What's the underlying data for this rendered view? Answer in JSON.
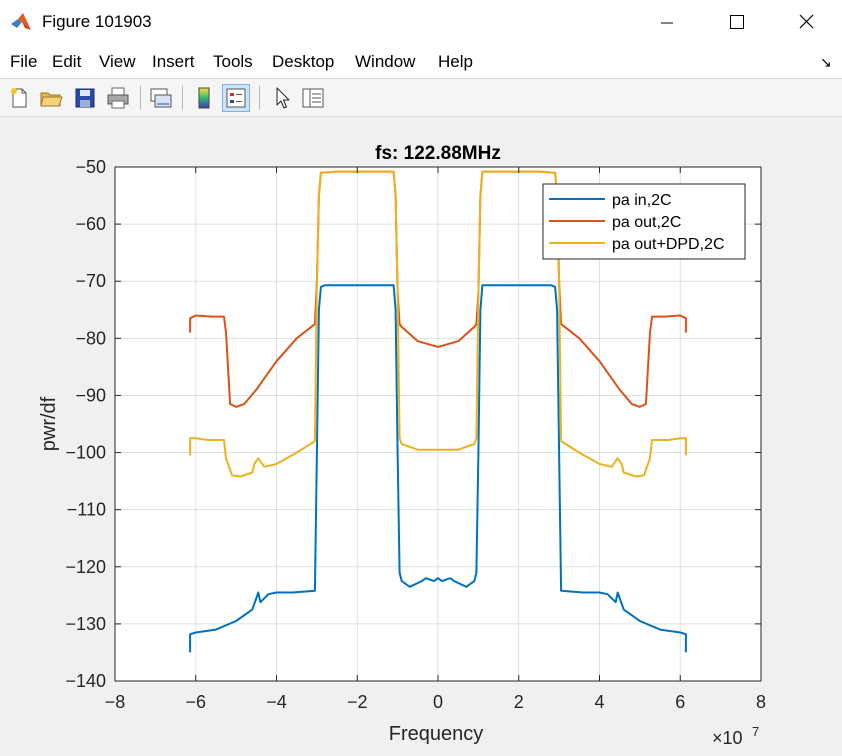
{
  "window": {
    "title": "Figure 101903",
    "menus": [
      "File",
      "Edit",
      "View",
      "Insert",
      "Tools",
      "Desktop",
      "Window",
      "Help"
    ]
  },
  "toolbar": {
    "tools": [
      "new-figure-icon",
      "open-file-icon",
      "save-icon",
      "print-icon",
      "link-plot-icon",
      "insert-colorbar-icon",
      "insert-legend-icon",
      "edit-plot-arrow-icon",
      "property-inspector-icon"
    ]
  },
  "chart_data": {
    "type": "line",
    "title": "fs: 122.88MHz",
    "xlabel": "Frequency",
    "ylabel": "pwr/df",
    "x_exponent": "7",
    "xlim": [
      -8,
      8
    ],
    "ylim": [
      -140,
      -50
    ],
    "xticks": [
      -8,
      -6,
      -4,
      -2,
      0,
      2,
      4,
      6,
      8
    ],
    "yticks": [
      -140,
      -130,
      -120,
      -110,
      -100,
      -90,
      -80,
      -70,
      -60,
      -50
    ],
    "grid": true,
    "legend_position": "top-right",
    "series": [
      {
        "name": "pa in,2C",
        "color": "#0072bd",
        "x": [
          -6.14,
          -6.14,
          -6.0,
          -5.5,
          -5.0,
          -4.6,
          -4.45,
          -4.4,
          -4.3,
          -4.2,
          -4.0,
          -3.6,
          -3.05,
          -3.0,
          -2.95,
          -2.9,
          -2.8,
          -2.5,
          -2.0,
          -1.5,
          -1.1,
          -1.05,
          -1.0,
          -0.95,
          -0.9,
          -0.7,
          -0.4,
          -0.3,
          -0.1,
          0,
          0.1,
          0.3,
          0.4,
          0.7,
          0.9,
          0.95,
          1.0,
          1.05,
          1.1,
          1.5,
          2.0,
          2.5,
          2.8,
          2.9,
          2.95,
          3.0,
          3.05,
          3.6,
          4.0,
          4.2,
          4.3,
          4.4,
          4.45,
          4.6,
          5.0,
          5.5,
          6.0,
          6.14,
          6.14
        ],
        "y": [
          -135,
          -131.8,
          -131.5,
          -131,
          -129.5,
          -127.5,
          -124.5,
          -126.2,
          -125.5,
          -124.8,
          -124.5,
          -124.5,
          -124.2,
          -100,
          -75,
          -71,
          -70.7,
          -70.7,
          -70.7,
          -70.7,
          -70.7,
          -75,
          -100,
          -121,
          -122.5,
          -123.5,
          -122.5,
          -122,
          -122.5,
          -122,
          -122.5,
          -122,
          -122.5,
          -123.5,
          -122.5,
          -121,
          -100,
          -75,
          -70.7,
          -70.7,
          -70.7,
          -70.7,
          -70.7,
          -71,
          -75,
          -100,
          -124.2,
          -124.5,
          -124.5,
          -124.8,
          -125.5,
          -126.2,
          -124.5,
          -127.5,
          -129.5,
          -131,
          -131.5,
          -131.8,
          -135
        ]
      },
      {
        "name": "pa out,2C",
        "color": "#d95319",
        "x": [
          -6.14,
          -6.14,
          -6.0,
          -5.6,
          -5.3,
          -5.25,
          -5.15,
          -5.0,
          -4.8,
          -4.5,
          -4.0,
          -3.5,
          -3.05,
          -3.0,
          -2.95,
          -2.9,
          -2.5,
          -2.0,
          -1.5,
          -1.1,
          -1.05,
          -1.0,
          -0.95,
          -0.9,
          -0.5,
          0,
          0.5,
          0.9,
          0.95,
          1.0,
          1.05,
          1.1,
          1.5,
          2.0,
          2.5,
          2.9,
          2.95,
          3.0,
          3.05,
          3.5,
          4.0,
          4.5,
          4.8,
          5.0,
          5.15,
          5.25,
          5.3,
          5.6,
          6.0,
          6.14,
          6.14
        ],
        "y": [
          -79,
          -76.5,
          -76,
          -76.2,
          -76.2,
          -79,
          -91.5,
          -92,
          -91.5,
          -89,
          -84,
          -80,
          -77.5,
          -70,
          -55,
          -51,
          -50.8,
          -50.8,
          -50.8,
          -50.8,
          -55,
          -72,
          -77.5,
          -78,
          -80.5,
          -81.5,
          -80.5,
          -78,
          -77.5,
          -72,
          -55,
          -50.8,
          -50.8,
          -50.8,
          -50.8,
          -51,
          -55,
          -70,
          -77.5,
          -80,
          -84,
          -89,
          -91.5,
          -92,
          -91.5,
          -79,
          -76.2,
          -76.2,
          -76,
          -76.5,
          -79
        ]
      },
      {
        "name": "pa out+DPD,2C",
        "color": "#edb120",
        "x": [
          -6.14,
          -6.14,
          -6.0,
          -5.7,
          -5.3,
          -5.25,
          -5.1,
          -4.9,
          -4.6,
          -4.55,
          -4.45,
          -4.3,
          -4.0,
          -3.5,
          -3.05,
          -3.0,
          -2.95,
          -2.9,
          -2.5,
          -2.0,
          -1.5,
          -1.1,
          -1.05,
          -1.0,
          -0.95,
          -0.9,
          -0.5,
          0,
          0.5,
          0.9,
          0.95,
          1.0,
          1.05,
          1.1,
          1.5,
          2.0,
          2.5,
          2.9,
          2.95,
          3.0,
          3.05,
          3.5,
          4.0,
          4.3,
          4.45,
          4.55,
          4.6,
          4.9,
          5.1,
          5.25,
          5.3,
          5.7,
          6.0,
          6.14,
          6.14
        ],
        "y": [
          -100.5,
          -97.5,
          -97.5,
          -97.8,
          -97.8,
          -101,
          -104,
          -104.2,
          -103.5,
          -102,
          -101,
          -102.5,
          -102,
          -100,
          -98,
          -70,
          -55,
          -51,
          -50.8,
          -50.8,
          -50.8,
          -50.8,
          -55,
          -72,
          -97.5,
          -98.5,
          -99.5,
          -99.5,
          -99.5,
          -98.5,
          -97.5,
          -72,
          -55,
          -50.8,
          -50.8,
          -50.8,
          -50.8,
          -51,
          -55,
          -70,
          -98,
          -100,
          -102,
          -102.5,
          -101,
          -102,
          -103.5,
          -104.2,
          -104,
          -101,
          -97.8,
          -97.8,
          -97.5,
          -97.5,
          -100.5
        ]
      }
    ]
  }
}
